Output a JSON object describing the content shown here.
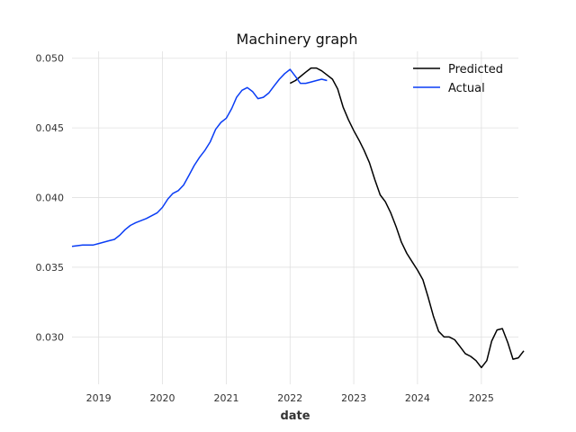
{
  "chart_data": {
    "type": "line",
    "title": "Machinery graph",
    "xlabel": "date",
    "ylabel": "",
    "xlim": [
      "2018-08-01",
      "2025-08-01"
    ],
    "ylim": [
      0.0266,
      0.0505
    ],
    "x_ticks": [
      "2019",
      "2020",
      "2021",
      "2022",
      "2023",
      "2024",
      "2025"
    ],
    "y_ticks": [
      "0.030",
      "0.035",
      "0.040",
      "0.045",
      "0.050"
    ],
    "grid": true,
    "legend_position": "top-right",
    "series": [
      {
        "name": "Predicted",
        "color": "#000000",
        "points": [
          [
            "2022-01-01",
            0.0482
          ],
          [
            "2022-02-01",
            0.0484
          ],
          [
            "2022-04-01",
            0.049
          ],
          [
            "2022-05-01",
            0.0493
          ],
          [
            "2022-06-01",
            0.0493
          ],
          [
            "2022-07-01",
            0.0491
          ],
          [
            "2022-08-01",
            0.0488
          ],
          [
            "2022-09-01",
            0.0485
          ],
          [
            "2022-10-01",
            0.0478
          ],
          [
            "2022-11-01",
            0.0465
          ],
          [
            "2022-12-01",
            0.0456
          ],
          [
            "2023-01-01",
            0.0448
          ],
          [
            "2023-02-01",
            0.0441
          ],
          [
            "2023-03-01",
            0.0434
          ],
          [
            "2023-04-01",
            0.0425
          ],
          [
            "2023-05-01",
            0.0413
          ],
          [
            "2023-06-01",
            0.0402
          ],
          [
            "2023-07-01",
            0.0397
          ],
          [
            "2023-08-01",
            0.0389
          ],
          [
            "2023-09-01",
            0.0379
          ],
          [
            "2023-10-01",
            0.0368
          ],
          [
            "2023-11-01",
            0.036
          ],
          [
            "2023-12-01",
            0.0354
          ],
          [
            "2024-01-01",
            0.0348
          ],
          [
            "2024-02-01",
            0.0341
          ],
          [
            "2024-03-01",
            0.0329
          ],
          [
            "2024-04-01",
            0.0315
          ],
          [
            "2024-05-01",
            0.0304
          ],
          [
            "2024-06-01",
            0.03
          ],
          [
            "2024-07-01",
            0.03
          ],
          [
            "2024-08-01",
            0.0298
          ],
          [
            "2024-09-01",
            0.0293
          ],
          [
            "2024-10-01",
            0.0288
          ],
          [
            "2024-11-01",
            0.0286
          ],
          [
            "2024-12-01",
            0.0283
          ],
          [
            "2025-01-01",
            0.0278
          ],
          [
            "2025-02-01",
            0.0283
          ],
          [
            "2025-03-01",
            0.0297
          ],
          [
            "2025-04-01",
            0.0305
          ],
          [
            "2025-05-01",
            0.0306
          ],
          [
            "2025-06-01",
            0.0296
          ],
          [
            "2025-07-01",
            0.0284
          ],
          [
            "2025-08-01",
            0.0285
          ],
          [
            "2025-09-01",
            0.029
          ]
        ]
      },
      {
        "name": "Actual",
        "color": "#0a3df5",
        "points": [
          [
            "2018-08-01",
            0.0365
          ],
          [
            "2018-10-01",
            0.0366
          ],
          [
            "2018-12-01",
            0.0366
          ],
          [
            "2019-01-01",
            0.0367
          ],
          [
            "2019-03-01",
            0.0369
          ],
          [
            "2019-04-01",
            0.037
          ],
          [
            "2019-05-01",
            0.0373
          ],
          [
            "2019-06-01",
            0.0377
          ],
          [
            "2019-07-01",
            0.038
          ],
          [
            "2019-08-01",
            0.0382
          ],
          [
            "2019-10-01",
            0.0385
          ],
          [
            "2019-12-01",
            0.0389
          ],
          [
            "2020-01-01",
            0.0393
          ],
          [
            "2020-02-01",
            0.0399
          ],
          [
            "2020-03-01",
            0.0403
          ],
          [
            "2020-04-01",
            0.0405
          ],
          [
            "2020-05-01",
            0.0409
          ],
          [
            "2020-06-01",
            0.0416
          ],
          [
            "2020-07-01",
            0.0423
          ],
          [
            "2020-08-01",
            0.0429
          ],
          [
            "2020-09-01",
            0.0434
          ],
          [
            "2020-10-01",
            0.044
          ],
          [
            "2020-11-01",
            0.0449
          ],
          [
            "2020-12-01",
            0.0454
          ],
          [
            "2021-01-01",
            0.0457
          ],
          [
            "2021-02-01",
            0.0464
          ],
          [
            "2021-03-01",
            0.0472
          ],
          [
            "2021-04-01",
            0.0477
          ],
          [
            "2021-05-01",
            0.0479
          ],
          [
            "2021-06-01",
            0.0476
          ],
          [
            "2021-07-01",
            0.0471
          ],
          [
            "2021-08-01",
            0.0472
          ],
          [
            "2021-09-01",
            0.0475
          ],
          [
            "2021-10-01",
            0.048
          ],
          [
            "2021-11-01",
            0.0485
          ],
          [
            "2021-12-01",
            0.0489
          ],
          [
            "2022-01-01",
            0.0492
          ],
          [
            "2022-02-01",
            0.0487
          ],
          [
            "2022-03-01",
            0.0482
          ],
          [
            "2022-04-01",
            0.0482
          ],
          [
            "2022-05-01",
            0.0483
          ],
          [
            "2022-06-01",
            0.0484
          ],
          [
            "2022-07-01",
            0.0485
          ],
          [
            "2022-08-01",
            0.0484
          ]
        ]
      }
    ]
  }
}
